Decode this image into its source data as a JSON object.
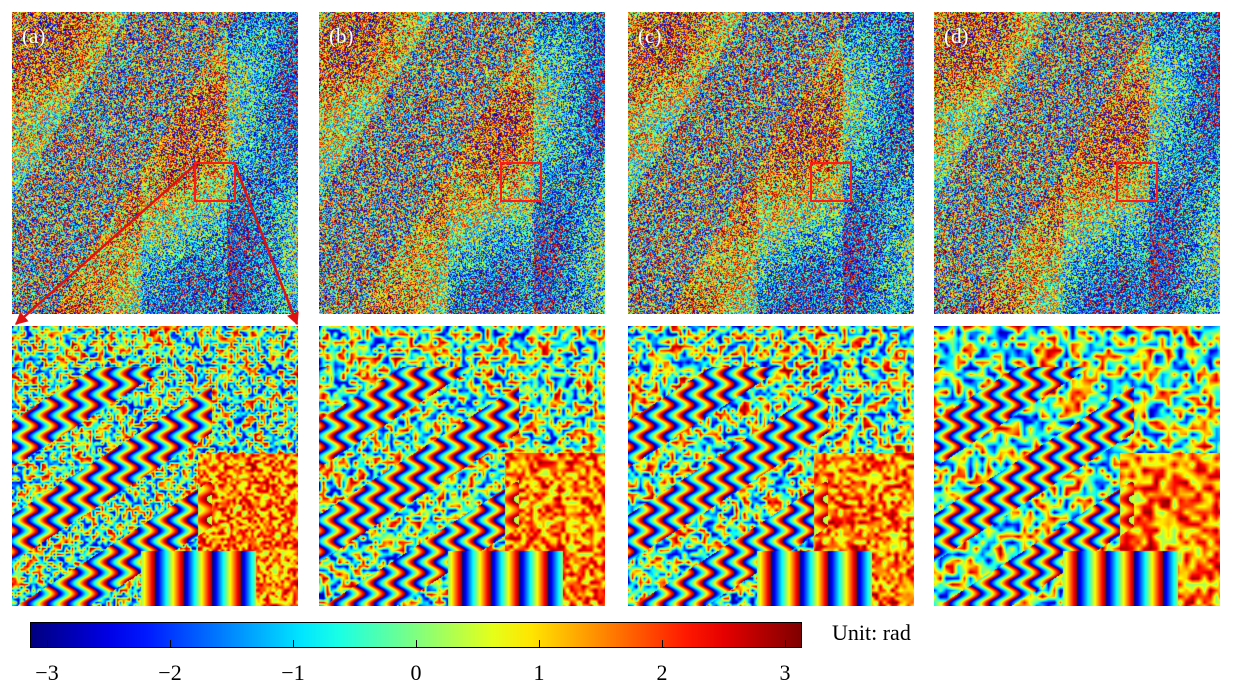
{
  "panels": [
    {
      "label": "(a)"
    },
    {
      "label": "(b)"
    },
    {
      "label": "(c)"
    },
    {
      "label": "(d)"
    }
  ],
  "colorbar": {
    "ticks": [
      "−3",
      "−2",
      "−1",
      "0",
      "1",
      "2",
      "3"
    ],
    "unit_label": "Unit: rad",
    "colormap": "jet",
    "range": [
      -3.14,
      3.14
    ]
  },
  "colors": {
    "roi_box": "#ff1a1a",
    "zoom_arrow": "#e01010"
  }
}
